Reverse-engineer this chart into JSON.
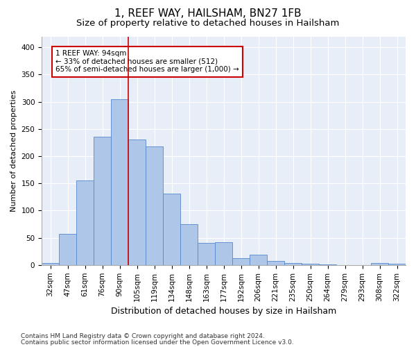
{
  "title1": "1, REEF WAY, HAILSHAM, BN27 1FB",
  "title2": "Size of property relative to detached houses in Hailsham",
  "xlabel": "Distribution of detached houses by size in Hailsham",
  "ylabel": "Number of detached properties",
  "categories": [
    "32sqm",
    "47sqm",
    "61sqm",
    "76sqm",
    "90sqm",
    "105sqm",
    "119sqm",
    "134sqm",
    "148sqm",
    "163sqm",
    "177sqm",
    "192sqm",
    "206sqm",
    "221sqm",
    "235sqm",
    "250sqm",
    "264sqm",
    "279sqm",
    "293sqm",
    "308sqm",
    "322sqm"
  ],
  "values": [
    3,
    57,
    155,
    236,
    305,
    230,
    218,
    131,
    75,
    41,
    42,
    12,
    19,
    8,
    4,
    2,
    1,
    0,
    0,
    4,
    2
  ],
  "bar_color": "#aec6e8",
  "bar_edge_color": "#5588cc",
  "vline_x_index": 4.5,
  "vline_color": "#cc0000",
  "annotation_text": "1 REEF WAY: 94sqm\n← 33% of detached houses are smaller (512)\n65% of semi-detached houses are larger (1,000) →",
  "annotation_box_color": "#ffffff",
  "annotation_box_edge": "#cc0000",
  "footer1": "Contains HM Land Registry data © Crown copyright and database right 2024.",
  "footer2": "Contains public sector information licensed under the Open Government Licence v3.0.",
  "ylim": [
    0,
    420
  ],
  "plot_bg_color": "#e8eef8",
  "title1_fontsize": 11,
  "title2_fontsize": 9.5,
  "xlabel_fontsize": 9,
  "ylabel_fontsize": 8,
  "tick_fontsize": 7.5,
  "footer_fontsize": 6.5,
  "annotation_fontsize": 7.5,
  "yticks": [
    0,
    50,
    100,
    150,
    200,
    250,
    300,
    350,
    400
  ]
}
